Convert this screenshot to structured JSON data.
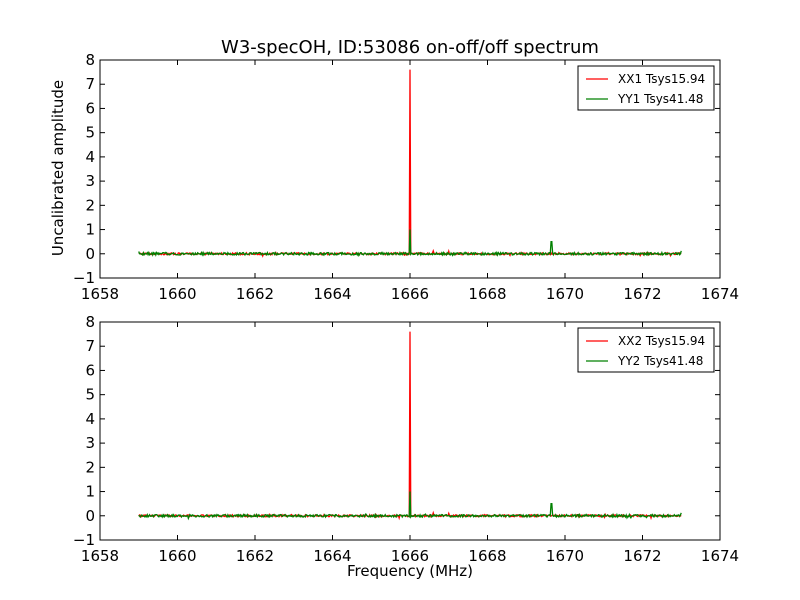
{
  "chart_data": [
    {
      "type": "line",
      "title": "W3-specOH, ID:53086 on-off/off spectrum",
      "xlabel": "",
      "ylabel": "Uncalibrated amplitude",
      "xlim": [
        1658,
        1674
      ],
      "ylim": [
        -1,
        8
      ],
      "xticks": [
        "1658",
        "1660",
        "1662",
        "1664",
        "1666",
        "1668",
        "1670",
        "1672",
        "1674"
      ],
      "yticks": [
        "−1",
        "0",
        "1",
        "2",
        "3",
        "4",
        "5",
        "6",
        "7",
        "8"
      ],
      "legend_position": "top-right",
      "x_range": [
        1659.0,
        1673.0
      ],
      "series": [
        {
          "name": "XX1 Tsys15.94",
          "color": "#ff0000",
          "baseline": 0.0,
          "noise": 0.04,
          "features": [
            {
              "x": 1666.0,
              "y": 7.6
            },
            {
              "x": 1666.6,
              "y": 0.12
            },
            {
              "x": 1667.0,
              "y": 0.1
            }
          ]
        },
        {
          "name": "YY1 Tsys41.48",
          "color": "#008000",
          "baseline": 0.0,
          "noise": 0.05,
          "features": [
            {
              "x": 1666.0,
              "y": 1.0
            },
            {
              "x": 1669.65,
              "y": 0.5
            },
            {
              "x": 1673.0,
              "y": 0.12
            }
          ]
        }
      ]
    },
    {
      "type": "line",
      "title": "",
      "xlabel": "Frequency (MHz)",
      "ylabel": "",
      "xlim": [
        1658,
        1674
      ],
      "ylim": [
        -1,
        8
      ],
      "xticks": [
        "1658",
        "1660",
        "1662",
        "1664",
        "1666",
        "1668",
        "1670",
        "1672",
        "1674"
      ],
      "yticks": [
        "−1",
        "0",
        "1",
        "2",
        "3",
        "4",
        "5",
        "6",
        "7",
        "8"
      ],
      "legend_position": "top-right",
      "x_range": [
        1659.0,
        1673.0
      ],
      "series": [
        {
          "name": "XX2 Tsys15.94",
          "color": "#ff0000",
          "baseline": 0.0,
          "noise": 0.04,
          "features": [
            {
              "x": 1666.0,
              "y": 7.6
            },
            {
              "x": 1666.6,
              "y": 0.12
            },
            {
              "x": 1667.0,
              "y": 0.1
            }
          ]
        },
        {
          "name": "YY2 Tsys41.48",
          "color": "#008000",
          "baseline": 0.0,
          "noise": 0.05,
          "features": [
            {
              "x": 1666.0,
              "y": 1.0
            },
            {
              "x": 1669.65,
              "y": 0.5
            },
            {
              "x": 1673.0,
              "y": 0.12
            }
          ]
        }
      ]
    }
  ]
}
